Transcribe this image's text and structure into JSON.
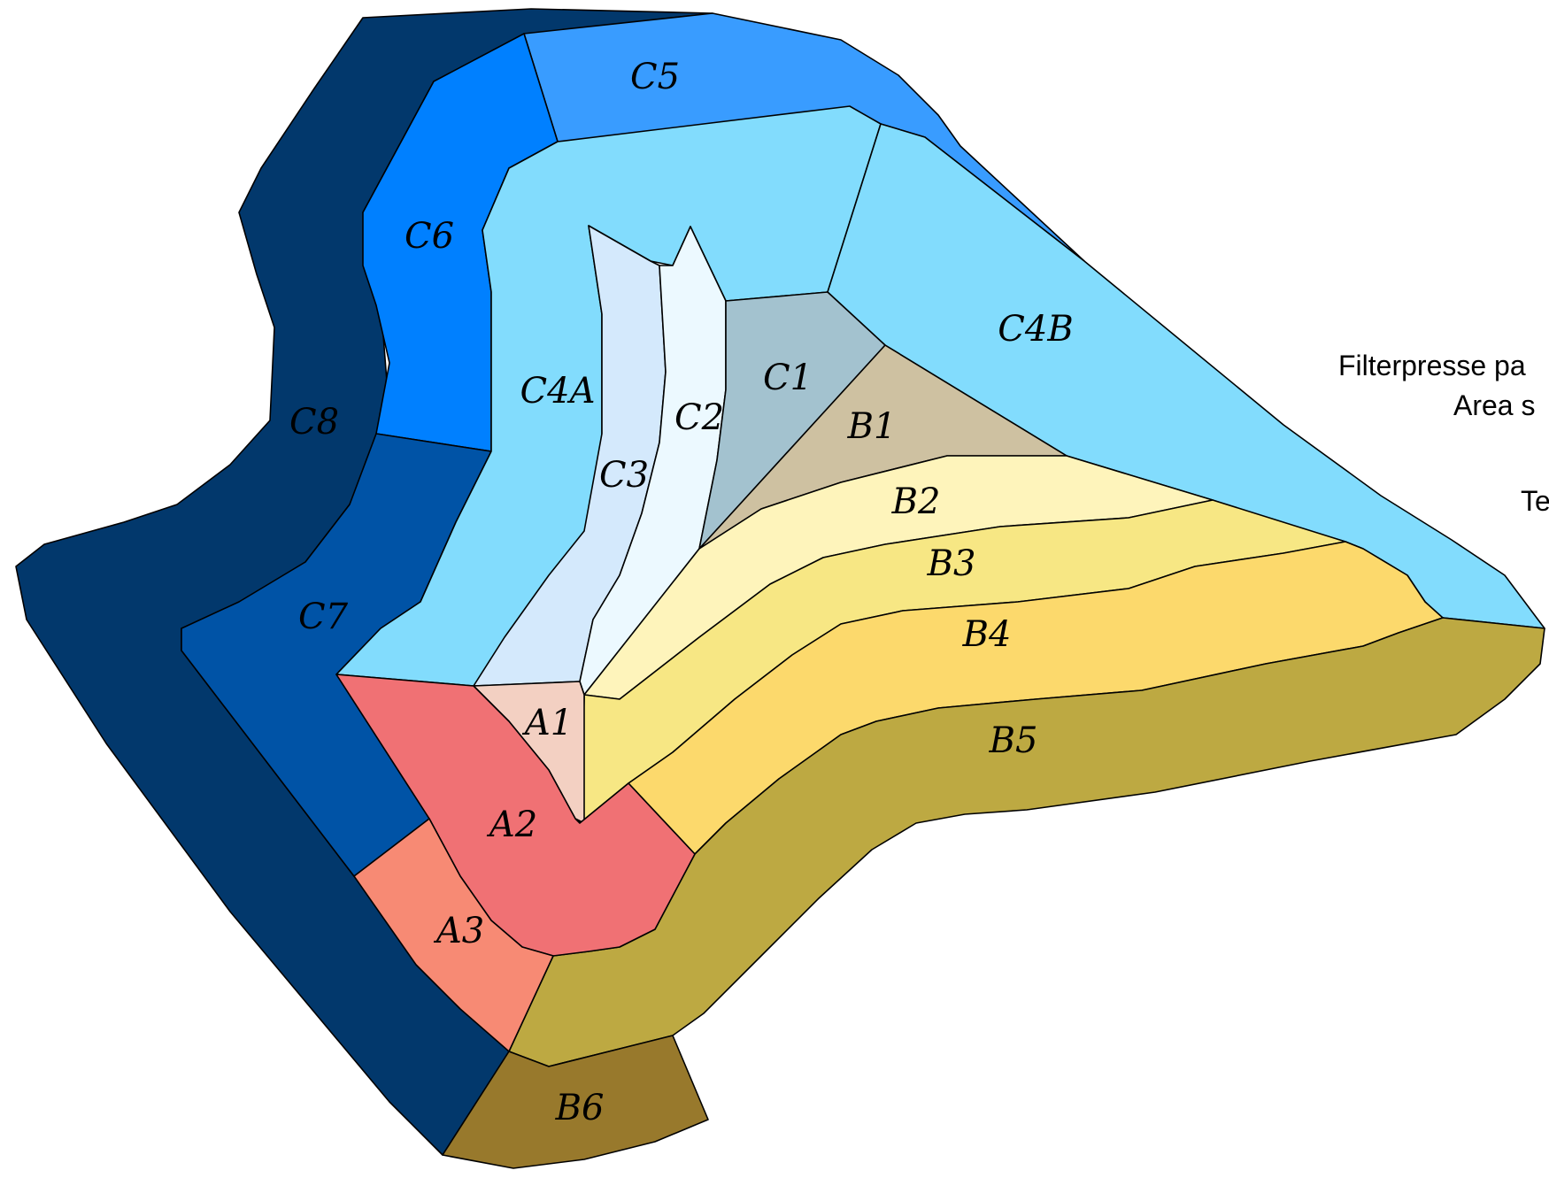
{
  "legend": {
    "line1": "Filterpresse pa",
    "line2": "Area s",
    "line3": "Te"
  },
  "zones": [
    {
      "id": "C8",
      "label": "C8",
      "color": "#02386C"
    },
    {
      "id": "C5",
      "label": "C5",
      "color": "#399CFF"
    },
    {
      "id": "C6",
      "label": "C6",
      "color": "#0080FF"
    },
    {
      "id": "C7",
      "label": "C7",
      "color": "#0053A6"
    },
    {
      "id": "C4A",
      "label": "C4A",
      "color": "#82DCFD"
    },
    {
      "id": "C4B",
      "label": "C4B",
      "color": "#82DCFD"
    },
    {
      "id": "C3",
      "label": "C3",
      "color": "#D4E9FC"
    },
    {
      "id": "C2",
      "label": "C2",
      "color": "#ECF9FF"
    },
    {
      "id": "C1",
      "label": "C1",
      "color": "#A3C2CF"
    },
    {
      "id": "B1",
      "label": "B1",
      "color": "#CEC1A1"
    },
    {
      "id": "B2",
      "label": "B2",
      "color": "#FEF4BB"
    },
    {
      "id": "B3",
      "label": "B3",
      "color": "#F7E784"
    },
    {
      "id": "B4",
      "label": "B4",
      "color": "#FCD96C"
    },
    {
      "id": "B5",
      "label": "B5",
      "color": "#BDA942"
    },
    {
      "id": "B6",
      "label": "B6",
      "color": "#98792C"
    },
    {
      "id": "A1",
      "label": "A1",
      "color": "#F3D0C2"
    },
    {
      "id": "A2",
      "label": "A2",
      "color": "#F07174"
    },
    {
      "id": "A3",
      "label": "A3",
      "color": "#F78A74"
    }
  ]
}
